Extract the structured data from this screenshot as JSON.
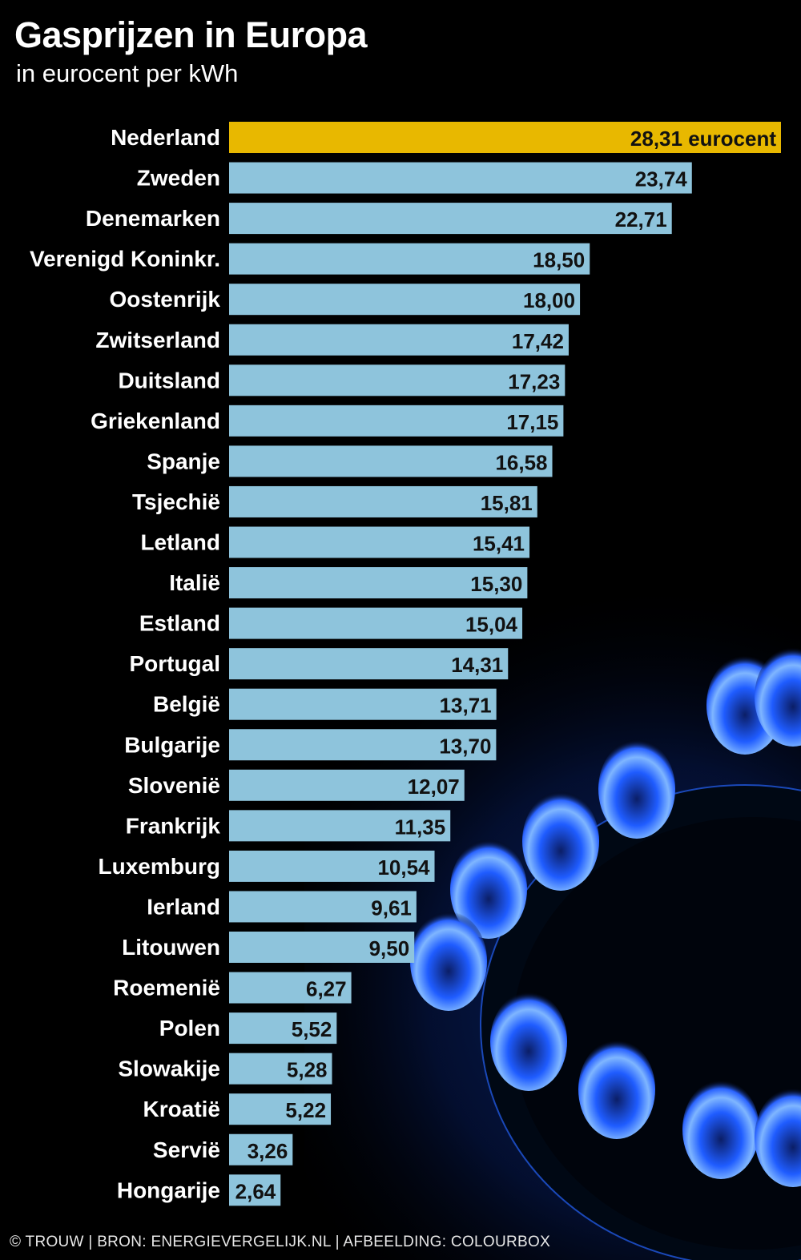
{
  "chart_data": {
    "type": "bar",
    "orientation": "horizontal",
    "title": "Gasprijzen in Europa",
    "subtitle": "in eurocent per kWh",
    "categories": [
      "Nederland",
      "Zweden",
      "Denemarken",
      "Verenigd Koninkr.",
      "Oostenrijk",
      "Zwitserland",
      "Duitsland",
      "Griekenland",
      "Spanje",
      "Tsjechië",
      "Letland",
      "Italië",
      "Estland",
      "Portugal",
      "België",
      "Bulgarije",
      "Slovenië",
      "Frankrijk",
      "Luxemburg",
      "Ierland",
      "Litouwen",
      "Roemenië",
      "Polen",
      "Slowakije",
      "Kroatië",
      "Servië",
      "Hongarije"
    ],
    "values": [
      28.31,
      23.74,
      22.71,
      18.5,
      18.0,
      17.42,
      17.23,
      17.15,
      16.58,
      15.81,
      15.41,
      15.3,
      15.04,
      14.31,
      13.71,
      13.7,
      12.07,
      11.35,
      10.54,
      9.61,
      9.5,
      6.27,
      5.52,
      5.28,
      5.22,
      3.26,
      2.64
    ],
    "value_labels": [
      "28,31 eurocent",
      "23,74",
      "22,71",
      "18,50",
      "18,00",
      "17,42",
      "17,23",
      "17,15",
      "16,58",
      "15,81",
      "15,41",
      "15,30",
      "15,04",
      "14,31",
      "13,71",
      "13,70",
      "12,07",
      "11,35",
      "10,54",
      "9,61",
      "9,50",
      "6,27",
      "5,52",
      "5,28",
      "5,22",
      "3,26",
      "2,64"
    ],
    "highlight_category": "Nederland",
    "colors": {
      "bar": "#8ec4dc",
      "highlight": "#e8b800",
      "background": "#000000",
      "flame": "#2a7bff"
    },
    "grid": false
  },
  "footer": "© TROUW | BRON: ENERGIEVERGELIJK.NL | AFBEELDING: COLOURBOX"
}
